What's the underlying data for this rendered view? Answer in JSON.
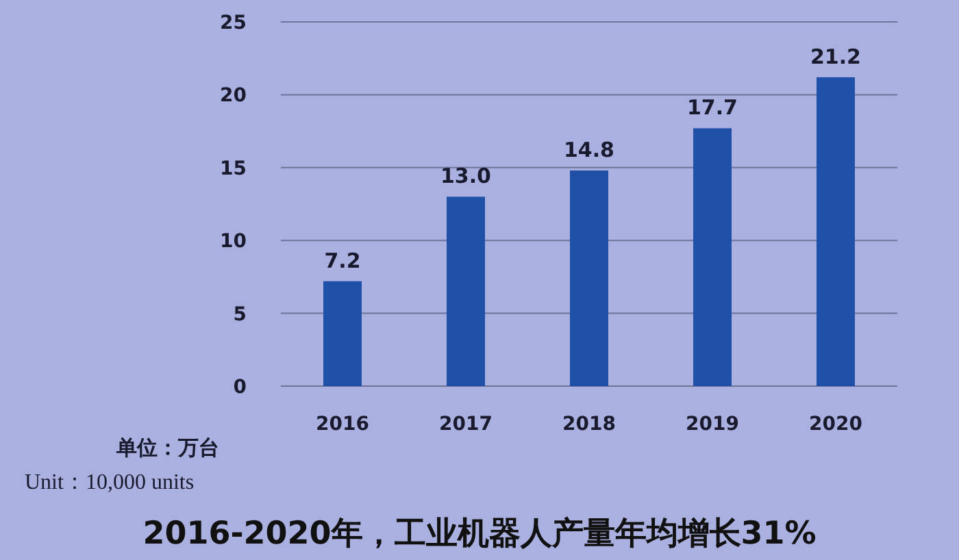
{
  "chart_data": {
    "type": "bar",
    "title": "2016-2020年，工业机器人产量年均增长31%",
    "annotations": [
      "单位：万台",
      "Unit：10,000 units"
    ],
    "categories": [
      "2016",
      "2017",
      "2018",
      "2019",
      "2020"
    ],
    "values": [
      7.2,
      13.0,
      14.8,
      17.7,
      21.2
    ],
    "value_labels": [
      "7.2",
      "13.0",
      "14.8",
      "17.7",
      "21.2"
    ],
    "color": "#1f4fa6",
    "ylim": [
      0,
      25
    ],
    "yticks": [
      0,
      5,
      10,
      15,
      20,
      25
    ],
    "grid": "y"
  }
}
